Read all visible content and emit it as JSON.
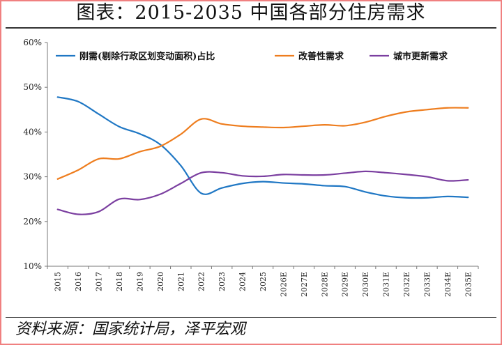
{
  "header": {
    "title": "图表：2015-2035 中国各部分住房需求"
  },
  "footer": {
    "source": "资料来源：国家统计局，泽平宏观"
  },
  "chart_data": {
    "type": "line",
    "title": "图表：2015-2035 中国各部分住房需求",
    "xlabel": "",
    "ylabel": "",
    "ylim": [
      10,
      60
    ],
    "y_ticks": [
      "10%",
      "20%",
      "30%",
      "40%",
      "50%",
      "60%"
    ],
    "grid": false,
    "legend_position": "top",
    "categories": [
      "2015",
      "2016",
      "2017",
      "2018",
      "2019",
      "2020",
      "2021",
      "2022",
      "2023",
      "2024",
      "2025",
      "2026E",
      "2027E",
      "2028E",
      "2029E",
      "2030E",
      "2031E",
      "2032E",
      "2033E",
      "2034E",
      "2035E"
    ],
    "series": [
      {
        "name": "刚需(剔除行政区划变动面积)占比",
        "color": "#1f77c4",
        "values": [
          47.8,
          46.8,
          44.0,
          41.2,
          39.6,
          37.2,
          32.5,
          26.3,
          27.5,
          28.5,
          28.9,
          28.6,
          28.4,
          28.0,
          27.8,
          26.6,
          25.7,
          25.3,
          25.3,
          25.6,
          25.4
        ]
      },
      {
        "name": "改善性需求",
        "color": "#ee7d1e",
        "values": [
          29.5,
          31.5,
          34.0,
          34.0,
          35.6,
          36.8,
          39.5,
          42.9,
          41.8,
          41.3,
          41.1,
          41.0,
          41.3,
          41.6,
          41.4,
          42.2,
          43.5,
          44.5,
          45.0,
          45.4,
          45.4
        ]
      },
      {
        "name": "城市更新需求",
        "color": "#7b3fa0",
        "values": [
          22.7,
          21.6,
          22.2,
          25.0,
          24.9,
          26.1,
          28.5,
          30.9,
          30.9,
          30.2,
          30.1,
          30.5,
          30.4,
          30.4,
          30.8,
          31.2,
          30.9,
          30.5,
          30.0,
          29.1,
          29.3
        ]
      }
    ]
  }
}
